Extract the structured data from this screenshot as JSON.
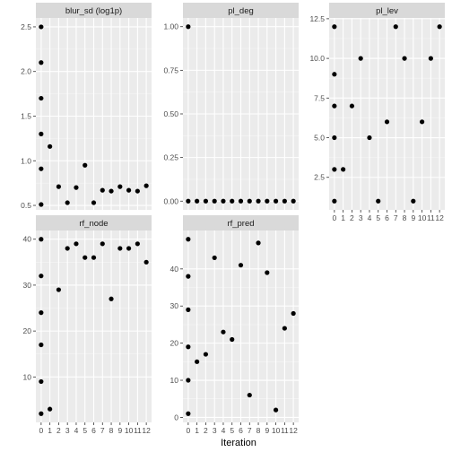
{
  "chart_data": [
    {
      "type": "scatter",
      "title": "blur_sd (log1p)",
      "x": [
        0,
        0,
        0,
        0,
        0,
        0,
        1,
        2,
        3,
        4,
        5,
        6,
        7,
        8,
        9,
        10,
        11,
        12
      ],
      "y": [
        2.5,
        2.1,
        1.7,
        1.3,
        0.91,
        0.51,
        1.16,
        0.71,
        0.53,
        0.7,
        0.95,
        0.53,
        0.67,
        0.66,
        0.71,
        0.67,
        0.66,
        0.72
      ],
      "ylim": [
        0.45,
        2.6
      ],
      "yticks": [
        0.5,
        1.0,
        1.5,
        2.0,
        2.5
      ],
      "ytick_labels": [
        "0.5",
        "1.0",
        "1.5",
        "2.0",
        "2.5"
      ]
    },
    {
      "type": "scatter",
      "title": "pl_deg",
      "x": [
        0,
        0,
        1,
        2,
        3,
        4,
        5,
        6,
        7,
        8,
        9,
        10,
        11,
        12
      ],
      "y": [
        1.0,
        0.0,
        0,
        0,
        0,
        0,
        0,
        0,
        0,
        0,
        0,
        0,
        0,
        0
      ],
      "ylim": [
        -0.05,
        1.05
      ],
      "yticks": [
        0.0,
        0.25,
        0.5,
        0.75,
        1.0
      ],
      "ytick_labels": [
        "0.00",
        "0.25",
        "0.50",
        "0.75",
        "1.00"
      ]
    },
    {
      "type": "scatter",
      "title": "pl_lev",
      "x": [
        0,
        0,
        0,
        0,
        0,
        0,
        1,
        2,
        3,
        4,
        5,
        6,
        7,
        8,
        9,
        10,
        11,
        12
      ],
      "y": [
        12,
        9,
        7,
        5,
        3,
        1,
        3,
        7,
        10,
        5,
        1,
        6,
        12,
        10,
        1,
        6,
        10,
        12
      ],
      "ylim": [
        0.45,
        12.55
      ],
      "yticks": [
        2.5,
        5.0,
        7.5,
        10.0,
        12.5
      ],
      "ytick_labels": [
        "2.5",
        "5.0",
        "7.5",
        "10.0",
        "12.5"
      ]
    },
    {
      "type": "scatter",
      "title": "rf_node",
      "x": [
        0,
        0,
        0,
        0,
        0,
        0,
        1,
        2,
        3,
        4,
        5,
        6,
        7,
        8,
        9,
        10,
        11,
        12
      ],
      "y": [
        40,
        32,
        24,
        17,
        9,
        2,
        3,
        29,
        38,
        39,
        36,
        36,
        39,
        27,
        38,
        38,
        39,
        35
      ],
      "ylim": [
        0.1,
        41.9
      ],
      "yticks": [
        10,
        20,
        30,
        40
      ],
      "ytick_labels": [
        "10",
        "20",
        "30",
        "40"
      ]
    },
    {
      "type": "scatter",
      "title": "rf_pred",
      "x": [
        0,
        0,
        0,
        0,
        0,
        0,
        1,
        2,
        3,
        4,
        5,
        6,
        7,
        8,
        9,
        10,
        11,
        12
      ],
      "y": [
        48,
        38,
        29,
        19,
        10,
        1,
        15,
        17,
        43,
        23,
        21,
        41,
        6,
        47,
        39,
        2,
        24,
        28
      ],
      "ylim": [
        -1.35,
        50.35
      ],
      "yticks": [
        0,
        10,
        20,
        30,
        40
      ],
      "ytick_labels": [
        "0",
        "10",
        "20",
        "30",
        "40"
      ]
    }
  ],
  "xaxis": {
    "label": "Iteration",
    "xlim": [
      -0.6,
      12.6
    ],
    "ticks": [
      0,
      1,
      2,
      3,
      4,
      5,
      6,
      7,
      8,
      9,
      10,
      11,
      12
    ],
    "tick_labels": [
      "0",
      "1",
      "2",
      "3",
      "4",
      "5",
      "6",
      "7",
      "8",
      "9",
      "10",
      "11",
      "12"
    ]
  },
  "colors": {
    "panel_bg": "#ebebeb",
    "strip_bg": "#d9d9d9",
    "grid_major": "#ffffff",
    "points": "#000000"
  }
}
